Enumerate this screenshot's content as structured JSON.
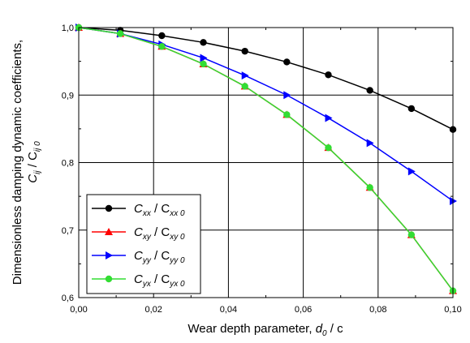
{
  "chart_data": {
    "type": "line",
    "xlabel": "Wear depth parameter, d0 / c",
    "ylabel": "Dimensionless damping dynamic coefficients, Cij / Cij0",
    "xlim": [
      0.0,
      0.1
    ],
    "ylim": [
      0.6,
      1.0
    ],
    "grid": true,
    "legend_position": "bottom-left",
    "x_ticks": [
      "0,00",
      "0,02",
      "0,04",
      "0,06",
      "0,08",
      "0,10"
    ],
    "y_ticks": [
      "0,6",
      "0,7",
      "0,8",
      "0,9",
      "1,0"
    ],
    "x": [
      0.0,
      0.0111,
      0.0222,
      0.0333,
      0.0444,
      0.0556,
      0.0667,
      0.0778,
      0.0889,
      0.1
    ],
    "series": [
      {
        "name": "Cxx / Cxx0",
        "color": "#000000",
        "marker": "circle",
        "values": [
          1.0,
          0.996,
          0.988,
          0.978,
          0.965,
          0.949,
          0.93,
          0.907,
          0.88,
          0.849
        ]
      },
      {
        "name": "Cxy / Cxy0",
        "color": "#ff0000",
        "marker": "triangle-up",
        "values": [
          1.0,
          0.991,
          0.972,
          0.946,
          0.913,
          0.871,
          0.822,
          0.763,
          0.693,
          0.61
        ]
      },
      {
        "name": "Cyy / Cyy0",
        "color": "#0000ff",
        "marker": "triangle-right",
        "values": [
          1.0,
          0.991,
          0.975,
          0.955,
          0.929,
          0.9,
          0.866,
          0.829,
          0.787,
          0.743
        ]
      },
      {
        "name": "Cyx / Cyx0",
        "color": "#33dd33",
        "marker": "circle",
        "values": [
          1.0,
          0.991,
          0.972,
          0.946,
          0.913,
          0.871,
          0.822,
          0.763,
          0.693,
          0.61
        ]
      }
    ]
  },
  "legend": [
    {
      "main": "C",
      "sub": "xx",
      "sep": " / C",
      "sub2": "xx 0"
    },
    {
      "main": "C",
      "sub": "xy",
      "sep": " / C",
      "sub2": "xy 0"
    },
    {
      "main": "C",
      "sub": "yy",
      "sep": " / C",
      "sub2": "yy 0"
    },
    {
      "main": "C",
      "sub": "yx",
      "sep": " / C",
      "sub2": "yx 0"
    }
  ],
  "xlabel_parts": {
    "text": "Wear depth parameter, ",
    "var": "d",
    "sub": "0",
    "tail": " / c"
  },
  "ylabel_parts": {
    "line1": "Dimensionless damping dynamic coefficients,",
    "main": "C",
    "sub": "ij",
    "sep": " / C",
    "sub2": "ij 0"
  }
}
